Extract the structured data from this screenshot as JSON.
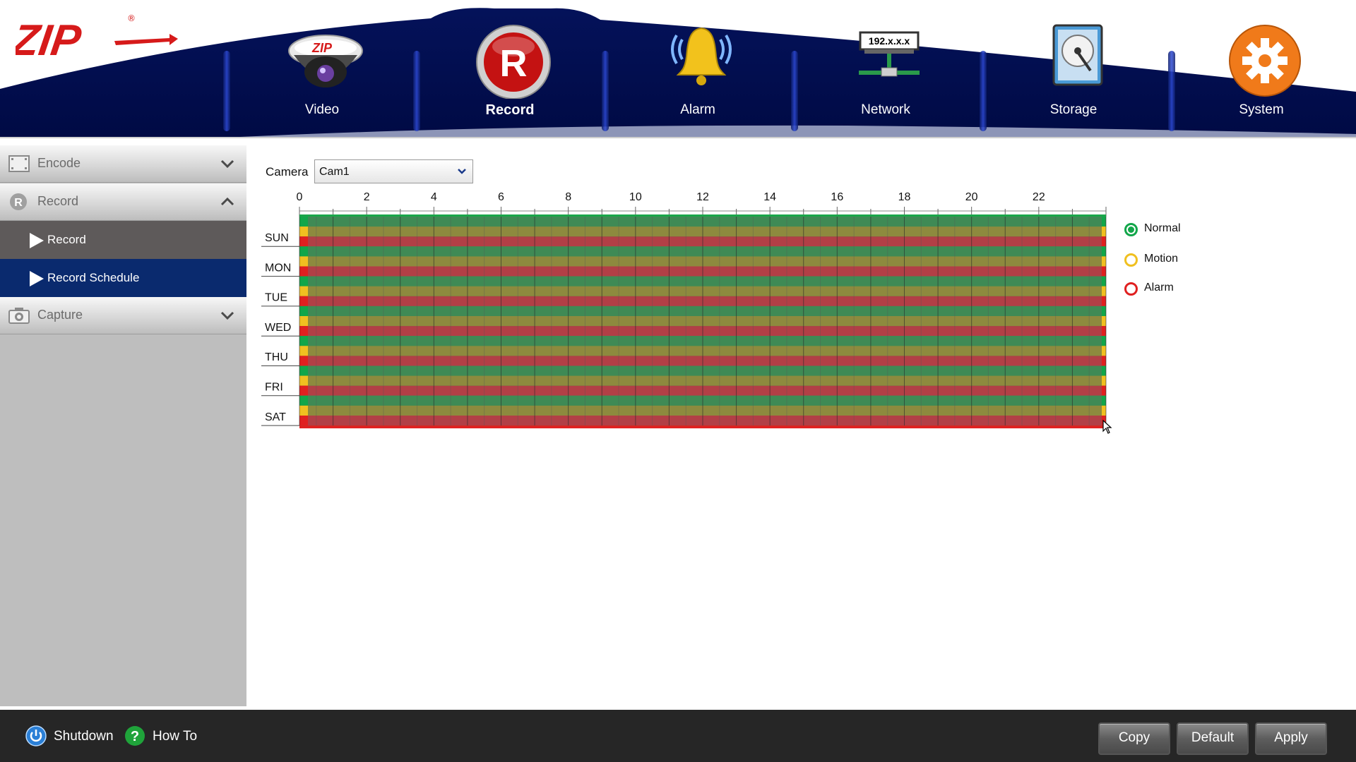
{
  "brand": {
    "logo_text": "ZIP",
    "registered_mark": "®"
  },
  "nav": {
    "items": [
      {
        "key": "video",
        "label": "Video",
        "icon": "dome-camera-icon"
      },
      {
        "key": "record",
        "label": "Record",
        "icon": "record-r-icon",
        "active": true
      },
      {
        "key": "alarm",
        "label": "Alarm",
        "icon": "alarm-bell-icon"
      },
      {
        "key": "network",
        "label": "Network",
        "icon": "network-icon",
        "icon_text": "192.x.x.x"
      },
      {
        "key": "storage",
        "label": "Storage",
        "icon": "hard-disk-icon"
      },
      {
        "key": "system",
        "label": "System",
        "icon": "gear-icon"
      }
    ]
  },
  "sidebar": {
    "sections": [
      {
        "label": "Encode",
        "icon": "film-icon",
        "expanded": false
      },
      {
        "label": "Record",
        "icon": "record-r-icon",
        "expanded": true,
        "items": [
          {
            "label": "Record"
          },
          {
            "label": "Record Schedule",
            "selected": true
          }
        ]
      },
      {
        "label": "Capture",
        "icon": "camera-icon",
        "expanded": false
      }
    ]
  },
  "camera": {
    "label": "Camera",
    "value": "Cam1"
  },
  "schedule": {
    "hour_ticks": [
      "0",
      "2",
      "4",
      "6",
      "8",
      "10",
      "12",
      "14",
      "16",
      "18",
      "20",
      "22"
    ],
    "days": [
      "SUN",
      "MON",
      "TUE",
      "WED",
      "THU",
      "FRI",
      "SAT"
    ],
    "modes_per_day": [
      "Normal",
      "Motion",
      "Alarm"
    ],
    "hours_scheduled": 24
  },
  "legend": [
    {
      "label": "Normal",
      "color": "#12a64a",
      "selected": true
    },
    {
      "label": "Motion",
      "color": "#f0c020",
      "selected": false
    },
    {
      "label": "Alarm",
      "color": "#e02020",
      "selected": false
    }
  ],
  "footer": {
    "shutdown_label": "Shutdown",
    "howto_label": "How To",
    "copy_label": "Copy",
    "default_label": "Default",
    "apply_label": "Apply"
  },
  "colors": {
    "navy": "#000c55",
    "sidebar_selected": "#0a2a6e",
    "sidebar_sub": "#5e5a5a",
    "grid_green": "#3f8a55",
    "grid_yellow": "#8d8a3e",
    "grid_red": "#b23f46"
  }
}
